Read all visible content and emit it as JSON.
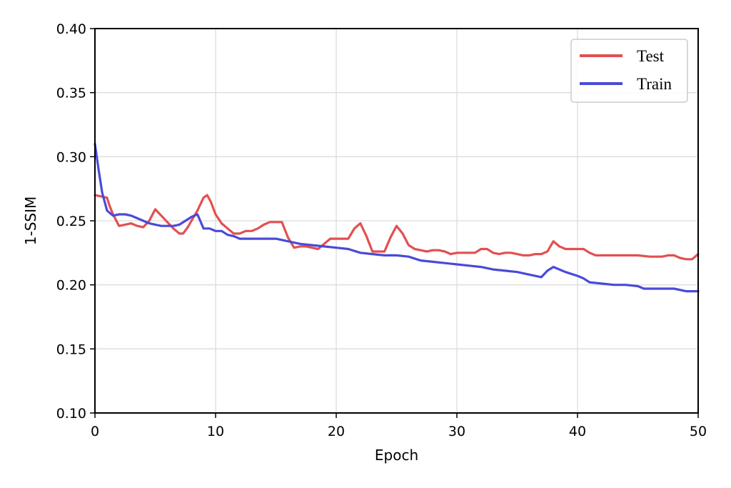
{
  "colors": {
    "test": "#e25050",
    "train": "#4a4ad8",
    "grid": "#dcdcdc",
    "axis": "#000000"
  },
  "chart_data": {
    "type": "line",
    "xlabel": "Epoch",
    "ylabel": "1-SSIM",
    "xlim": [
      0,
      50
    ],
    "ylim": [
      0.1,
      0.4
    ],
    "xticks": [
      0,
      10,
      20,
      30,
      40,
      50
    ],
    "xtick_labels": [
      "0",
      "10",
      "20",
      "30",
      "40",
      "50"
    ],
    "yticks": [
      0.1,
      0.15,
      0.2,
      0.25,
      0.3,
      0.35,
      0.4
    ],
    "ytick_labels": [
      "0.10",
      "0.15",
      "0.20",
      "0.25",
      "0.30",
      "0.35",
      "0.40"
    ],
    "grid": true,
    "legend_position": "top-right",
    "series": [
      {
        "name": "Test",
        "color": "#e25050",
        "x": [
          0,
          1,
          1.2,
          1.5,
          2.0,
          2.5,
          3.0,
          3.5,
          4.0,
          4.5,
          5.0,
          5.5,
          6.0,
          6.5,
          7.0,
          7.3,
          7.7,
          8.0,
          8.5,
          9.0,
          9.3,
          9.6,
          10.0,
          10.5,
          11.0,
          11.5,
          12.0,
          12.5,
          13.0,
          13.5,
          14.0,
          14.5,
          15.0,
          15.5,
          16.0,
          16.5,
          17.0,
          17.5,
          18.0,
          18.5,
          19.0,
          19.5,
          20.0,
          20.5,
          21.0,
          21.5,
          22.0,
          22.5,
          23.0,
          23.5,
          24.0,
          24.5,
          25.0,
          25.5,
          26.0,
          26.5,
          27.0,
          27.5,
          28.0,
          28.5,
          29.0,
          29.5,
          30.0,
          30.5,
          31.0,
          31.5,
          32.0,
          32.5,
          33.0,
          33.5,
          34.0,
          34.5,
          35.0,
          35.5,
          36.0,
          36.5,
          37.0,
          37.5,
          38.0,
          38.5,
          39.0,
          39.5,
          40.0,
          40.5,
          41.0,
          41.5,
          42.0,
          43.0,
          44.0,
          45.0,
          46.0,
          46.5,
          47.0,
          47.5,
          48.0,
          48.5,
          49.0,
          49.5,
          50.0
        ],
        "y": [
          0.27,
          0.268,
          0.262,
          0.255,
          0.246,
          0.247,
          0.248,
          0.246,
          0.245,
          0.25,
          0.259,
          0.254,
          0.249,
          0.244,
          0.24,
          0.24,
          0.245,
          0.25,
          0.258,
          0.268,
          0.27,
          0.265,
          0.255,
          0.248,
          0.244,
          0.24,
          0.24,
          0.242,
          0.242,
          0.244,
          0.247,
          0.249,
          0.249,
          0.249,
          0.237,
          0.229,
          0.23,
          0.23,
          0.229,
          0.228,
          0.232,
          0.236,
          0.236,
          0.236,
          0.236,
          0.244,
          0.248,
          0.238,
          0.226,
          0.226,
          0.226,
          0.237,
          0.246,
          0.24,
          0.231,
          0.228,
          0.227,
          0.226,
          0.227,
          0.227,
          0.226,
          0.224,
          0.225,
          0.225,
          0.225,
          0.225,
          0.228,
          0.228,
          0.225,
          0.224,
          0.225,
          0.225,
          0.224,
          0.223,
          0.223,
          0.224,
          0.224,
          0.226,
          0.234,
          0.23,
          0.228,
          0.228,
          0.228,
          0.228,
          0.225,
          0.223,
          0.223,
          0.223,
          0.223,
          0.223,
          0.222,
          0.222,
          0.222,
          0.223,
          0.223,
          0.221,
          0.22,
          0.22,
          0.224
        ]
      },
      {
        "name": "Train",
        "color": "#4a4ad8",
        "x": [
          0,
          0.3,
          0.6,
          1.0,
          1.5,
          2.0,
          2.5,
          3.0,
          3.5,
          4.0,
          4.5,
          5.0,
          5.5,
          6.0,
          6.5,
          7.0,
          7.5,
          8.0,
          8.5,
          9.0,
          9.5,
          10.0,
          10.5,
          11.0,
          11.5,
          12.0,
          13.0,
          14.0,
          15.0,
          16.0,
          17.0,
          18.0,
          19.0,
          20.0,
          21.0,
          22.0,
          23.0,
          24.0,
          25.0,
          26.0,
          27.0,
          28.0,
          29.0,
          30.0,
          31.0,
          32.0,
          33.0,
          34.0,
          35.0,
          36.0,
          37.0,
          37.5,
          38.0,
          39.0,
          40.0,
          40.5,
          41.0,
          42.0,
          43.0,
          44.0,
          45.0,
          45.5,
          46.0,
          47.0,
          48.0,
          49.0,
          50.0
        ],
        "y": [
          0.31,
          0.29,
          0.272,
          0.258,
          0.254,
          0.255,
          0.255,
          0.254,
          0.252,
          0.25,
          0.248,
          0.247,
          0.246,
          0.246,
          0.246,
          0.247,
          0.25,
          0.253,
          0.255,
          0.244,
          0.244,
          0.242,
          0.242,
          0.239,
          0.238,
          0.236,
          0.236,
          0.236,
          0.236,
          0.234,
          0.232,
          0.231,
          0.23,
          0.229,
          0.228,
          0.225,
          0.224,
          0.223,
          0.223,
          0.222,
          0.219,
          0.218,
          0.217,
          0.216,
          0.215,
          0.214,
          0.212,
          0.211,
          0.21,
          0.208,
          0.206,
          0.211,
          0.214,
          0.21,
          0.207,
          0.205,
          0.202,
          0.201,
          0.2,
          0.2,
          0.199,
          0.197,
          0.197,
          0.197,
          0.197,
          0.195,
          0.195
        ]
      }
    ]
  }
}
